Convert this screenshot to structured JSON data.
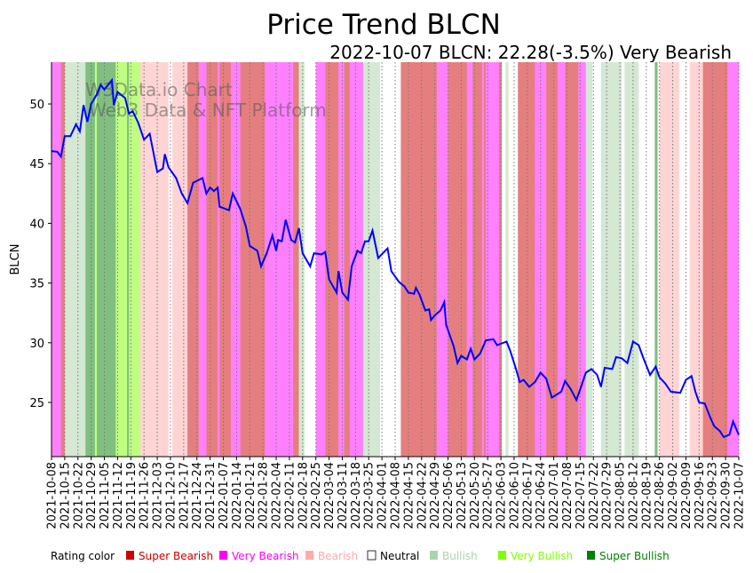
{
  "chart_data": {
    "type": "line",
    "title": "Price Trend BLCN",
    "subtitle": "2022-10-07 BLCN: 22.28(-3.5%) Very Bearish",
    "ylabel": "BLCN",
    "xlabel": "",
    "ylim": [
      20.46,
      53.5
    ],
    "xlim_days": [
      0,
      364
    ],
    "start_date": "2021-10-08",
    "yticks": [
      25,
      30,
      35,
      40,
      45,
      50
    ],
    "xtick_labels": [
      "2021-10-08",
      "2021-10-15",
      "2021-10-22",
      "2021-10-29",
      "2021-11-05",
      "2021-11-12",
      "2021-11-19",
      "2021-11-26",
      "2021-12-03",
      "2021-12-10",
      "2021-12-17",
      "2021-12-24",
      "2021-12-31",
      "2022-01-07",
      "2022-01-14",
      "2022-01-21",
      "2022-01-28",
      "2022-02-04",
      "2022-02-11",
      "2022-02-18",
      "2022-02-25",
      "2022-03-04",
      "2022-03-11",
      "2022-03-18",
      "2022-03-25",
      "2022-04-01",
      "2022-04-08",
      "2022-04-15",
      "2022-04-22",
      "2022-04-29",
      "2022-05-06",
      "2022-05-13",
      "2022-05-20",
      "2022-05-27",
      "2022-06-03",
      "2022-06-10",
      "2022-06-17",
      "2022-06-24",
      "2022-07-01",
      "2022-07-08",
      "2022-07-15",
      "2022-07-22",
      "2022-07-29",
      "2022-08-05",
      "2022-08-12",
      "2022-08-19",
      "2022-08-26",
      "2022-09-02",
      "2022-09-09",
      "2022-09-16",
      "2022-09-23",
      "2022-09-30",
      "2022-10-07"
    ],
    "grid": "vertical-dotted",
    "line_color": "#0000ff",
    "series": [
      {
        "name": "BLCN",
        "points": [
          [
            0,
            46.05
          ],
          [
            3,
            46
          ],
          [
            5,
            45.6
          ],
          [
            7,
            47.3
          ],
          [
            10,
            47.3
          ],
          [
            13,
            48.3
          ],
          [
            15,
            47.7
          ],
          [
            17,
            49.9
          ],
          [
            19,
            48.5
          ],
          [
            21,
            50
          ],
          [
            24,
            50.8
          ],
          [
            26,
            51.6
          ],
          [
            28,
            51.2
          ],
          [
            32,
            52
          ],
          [
            33,
            49.9
          ],
          [
            35,
            51
          ],
          [
            39,
            50.5
          ],
          [
            41,
            49.2
          ],
          [
            43,
            49.4
          ],
          [
            46,
            48.4
          ],
          [
            49,
            47
          ],
          [
            52,
            47.5
          ],
          [
            56,
            44.3
          ],
          [
            59,
            44.6
          ],
          [
            60,
            45.8
          ],
          [
            62,
            44.7
          ],
          [
            66,
            43.8
          ],
          [
            69,
            42.5
          ],
          [
            72,
            41.7
          ],
          [
            75,
            43.4
          ],
          [
            80,
            43.8
          ],
          [
            82,
            42.5
          ],
          [
            84,
            43
          ],
          [
            86,
            42.7
          ],
          [
            88,
            43
          ],
          [
            89,
            41.4
          ],
          [
            94,
            41.1
          ],
          [
            96,
            42.5
          ],
          [
            100,
            41.2
          ],
          [
            103,
            39.7
          ],
          [
            105,
            38.1
          ],
          [
            109,
            37.7
          ],
          [
            111,
            36.4
          ],
          [
            114,
            37.5
          ],
          [
            117,
            39
          ],
          [
            119,
            37.7
          ],
          [
            120,
            38.6
          ],
          [
            122,
            38.5
          ],
          [
            124,
            40.3
          ],
          [
            127,
            38.6
          ],
          [
            129,
            38.4
          ],
          [
            131,
            39.6
          ],
          [
            133,
            37.5
          ],
          [
            137,
            36.4
          ],
          [
            139,
            37.5
          ],
          [
            143,
            37.4
          ],
          [
            145,
            37.6
          ],
          [
            147,
            35.3
          ],
          [
            151,
            34.2
          ],
          [
            152,
            36
          ],
          [
            154,
            34.2
          ],
          [
            157,
            33.6
          ],
          [
            159,
            36.4
          ],
          [
            162,
            37.7
          ],
          [
            164,
            37.5
          ],
          [
            166,
            38.5
          ],
          [
            168,
            38.5
          ],
          [
            170,
            39.4
          ],
          [
            173,
            37.1
          ],
          [
            178,
            37.9
          ],
          [
            180,
            36
          ],
          [
            184,
            35.1
          ],
          [
            187,
            34.7
          ],
          [
            189,
            34.2
          ],
          [
            192,
            34.1
          ],
          [
            193,
            34.6
          ],
          [
            195,
            34
          ],
          [
            198,
            32.7
          ],
          [
            200,
            32.8
          ],
          [
            201,
            31.9
          ],
          [
            203,
            32.3
          ],
          [
            206,
            32.7
          ],
          [
            208,
            33.4
          ],
          [
            209,
            31.5
          ],
          [
            213,
            29.7
          ],
          [
            215,
            28.3
          ],
          [
            217,
            28.9
          ],
          [
            220,
            28.6
          ],
          [
            222,
            29.5
          ],
          [
            224,
            28.6
          ],
          [
            227,
            29.1
          ],
          [
            230,
            30.2
          ],
          [
            234,
            30.3
          ],
          [
            236,
            29.8
          ],
          [
            241,
            30.1
          ],
          [
            243,
            29.3
          ],
          [
            246,
            27.8
          ],
          [
            248,
            26.7
          ],
          [
            250,
            26.9
          ],
          [
            253,
            26.3
          ],
          [
            256,
            26.7
          ],
          [
            259,
            27.5
          ],
          [
            262,
            27
          ],
          [
            265,
            25.4
          ],
          [
            270,
            25.9
          ],
          [
            272,
            26.8
          ],
          [
            275,
            26.1
          ],
          [
            278,
            25.2
          ],
          [
            280,
            26.1
          ],
          [
            283,
            27.5
          ],
          [
            286,
            27.8
          ],
          [
            289,
            27.3
          ],
          [
            291,
            26.3
          ],
          [
            293,
            27.9
          ],
          [
            297,
            27.8
          ],
          [
            299,
            28.8
          ],
          [
            302,
            28.7
          ],
          [
            305,
            28.3
          ],
          [
            308,
            30.1
          ],
          [
            311,
            29.8
          ],
          [
            313,
            28.9
          ],
          [
            317,
            27.3
          ],
          [
            320,
            28
          ],
          [
            322,
            27.1
          ],
          [
            325,
            26.6
          ],
          [
            328,
            25.9
          ],
          [
            333,
            25.8
          ],
          [
            336,
            26.9
          ],
          [
            339,
            27.2
          ],
          [
            341,
            25.9
          ],
          [
            343,
            25
          ],
          [
            346,
            24.9
          ],
          [
            349,
            23.7
          ],
          [
            351,
            23
          ],
          [
            354,
            22.6
          ],
          [
            356,
            22.1
          ],
          [
            359,
            22.3
          ],
          [
            361,
            23.4
          ],
          [
            364,
            22.28
          ]
        ]
      }
    ],
    "rating_bands": [
      [
        0,
        5,
        "VBear"
      ],
      [
        5,
        7,
        "SBear"
      ],
      [
        7,
        18,
        "Bull"
      ],
      [
        18,
        23,
        "SBull"
      ],
      [
        23,
        24,
        "VBull"
      ],
      [
        24,
        34,
        "SBull"
      ],
      [
        34,
        40,
        "VBull"
      ],
      [
        40,
        41,
        "SBull"
      ],
      [
        41,
        47,
        "VBull"
      ],
      [
        47,
        62,
        "Bear"
      ],
      [
        62,
        64,
        "Neutral"
      ],
      [
        64,
        72,
        "Bear"
      ],
      [
        72,
        78,
        "SBear"
      ],
      [
        78,
        82,
        "VBear"
      ],
      [
        82,
        88,
        "SBear"
      ],
      [
        88,
        89,
        "VBear"
      ],
      [
        89,
        95,
        "SBear"
      ],
      [
        95,
        100,
        "VBear"
      ],
      [
        100,
        113,
        "SBear"
      ],
      [
        113,
        122,
        "VBear"
      ],
      [
        122,
        128,
        "VBear"
      ],
      [
        128,
        131,
        "SBear"
      ],
      [
        131,
        134,
        "Bull"
      ],
      [
        134,
        140,
        "Neutral"
      ],
      [
        140,
        145,
        "VBear"
      ],
      [
        145,
        152,
        "SBear"
      ],
      [
        152,
        155,
        "VBear"
      ],
      [
        155,
        158,
        "SBear"
      ],
      [
        158,
        165,
        "VBear"
      ],
      [
        165,
        174,
        "Bull"
      ],
      [
        174,
        185,
        "Neutral"
      ],
      [
        185,
        204,
        "SBear"
      ],
      [
        204,
        210,
        "VBear"
      ],
      [
        210,
        220,
        "SBear"
      ],
      [
        220,
        223,
        "VBear"
      ],
      [
        223,
        228,
        "SBear"
      ],
      [
        228,
        229,
        "VBear"
      ],
      [
        229,
        230,
        "SBear"
      ],
      [
        230,
        237,
        "VBear"
      ],
      [
        237,
        238.5,
        "SBear"
      ],
      [
        238.5,
        240.5,
        "Neutral"
      ],
      [
        240.5,
        242,
        "Bull"
      ],
      [
        242,
        247,
        "Neutral"
      ],
      [
        247,
        256,
        "SBear"
      ],
      [
        256,
        262,
        "VBear"
      ],
      [
        262,
        268,
        "SBear"
      ],
      [
        268,
        272,
        "VBear"
      ],
      [
        272,
        279,
        "SBear"
      ],
      [
        279,
        283,
        "VBear"
      ],
      [
        283,
        286.5,
        "Bull"
      ],
      [
        286.5,
        291,
        "Neutral"
      ],
      [
        291,
        302,
        "Bull"
      ],
      [
        302,
        303.5,
        "Neutral"
      ],
      [
        303.5,
        311,
        "Bull"
      ],
      [
        311,
        319.5,
        "Neutral"
      ],
      [
        319.5,
        321,
        "SBull"
      ],
      [
        321,
        322,
        "Neutral"
      ],
      [
        322,
        332.5,
        "Bear"
      ],
      [
        332.5,
        338,
        "Neutral"
      ],
      [
        338,
        345,
        "Bear"
      ],
      [
        345,
        358,
        "SBear"
      ],
      [
        358,
        364,
        "VBear"
      ]
    ],
    "band_colors": {
      "SBear": "#e57f7f",
      "VBear": "#ff80ff",
      "Bear": "#ffd4d4",
      "Neutral": "#ffffff",
      "Bull": "#d4e8d4",
      "VBull": "#bfff80",
      "SBull": "#80bf80"
    },
    "legend": {
      "label": "Rating color",
      "items": [
        {
          "key": "SBear",
          "label": "Super Bearish",
          "color": "#cc0000"
        },
        {
          "key": "VBear",
          "label": "Very Bearish",
          "color": "#ff00ff"
        },
        {
          "key": "Bear",
          "label": "Bearish",
          "color": "#ffaaaa"
        },
        {
          "key": "Neutral",
          "label": "Neutral",
          "color": "#000000",
          "box": "#ffffff"
        },
        {
          "key": "Bull",
          "label": "Bullish",
          "color": "#aad4aa"
        },
        {
          "key": "VBull",
          "label": "Very Bullish",
          "color": "#80ff00"
        },
        {
          "key": "SBull",
          "label": "Super Bullish",
          "color": "#008000"
        }
      ],
      "placement": "bottom"
    },
    "watermark": [
      "W3Data.io Chart",
      "Web3 Data & NFT Platform"
    ]
  }
}
